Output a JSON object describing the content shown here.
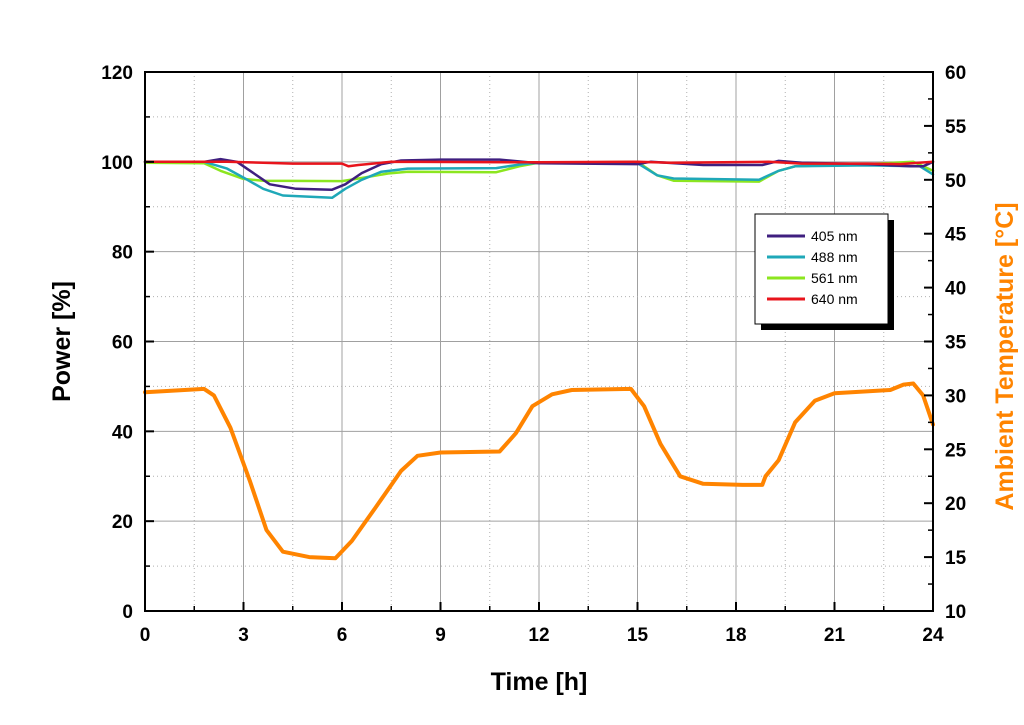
{
  "chart_data": {
    "type": "line",
    "xlabel": "Time [h]",
    "ylabel": "Power [%]",
    "y2label": "Ambient Temperature [°C]",
    "xlim": [
      0,
      24
    ],
    "ylim": [
      0,
      120
    ],
    "y2lim": [
      10,
      60
    ],
    "xticks": [
      0,
      3,
      6,
      9,
      12,
      15,
      18,
      21,
      24
    ],
    "yticks": [
      0,
      20,
      40,
      60,
      80,
      100,
      120
    ],
    "y2ticks": [
      10,
      15,
      20,
      25,
      30,
      35,
      40,
      45,
      50,
      55,
      60
    ],
    "grid": true,
    "legend_position": "right",
    "series": [
      {
        "name": "405 nm",
        "axis": "left",
        "color": "#3f1f7f",
        "points": [
          [
            0,
            100
          ],
          [
            1.8,
            100
          ],
          [
            2.3,
            100.6
          ],
          [
            2.8,
            100
          ],
          [
            3.2,
            98
          ],
          [
            3.8,
            95
          ],
          [
            4.6,
            94
          ],
          [
            5.7,
            93.8
          ],
          [
            6.1,
            95
          ],
          [
            6.6,
            97.5
          ],
          [
            7.2,
            99.5
          ],
          [
            7.8,
            100.3
          ],
          [
            9,
            100.5
          ],
          [
            10.8,
            100.5
          ],
          [
            11.5,
            100
          ],
          [
            12,
            99.7
          ],
          [
            15,
            99.5
          ],
          [
            15.4,
            100
          ],
          [
            17,
            99.3
          ],
          [
            18.8,
            99.3
          ],
          [
            19.3,
            100.2
          ],
          [
            20,
            99.8
          ],
          [
            22,
            99.5
          ],
          [
            23.3,
            99
          ],
          [
            23.7,
            99
          ],
          [
            24,
            100
          ]
        ]
      },
      {
        "name": "488 nm",
        "axis": "left",
        "color": "#1fa8b8",
        "points": [
          [
            0,
            100
          ],
          [
            1.8,
            100
          ],
          [
            2.5,
            98.5
          ],
          [
            3,
            96.5
          ],
          [
            3.6,
            94
          ],
          [
            4.2,
            92.5
          ],
          [
            5.7,
            92
          ],
          [
            6.1,
            94
          ],
          [
            6.6,
            96
          ],
          [
            7.2,
            97.8
          ],
          [
            8,
            98.5
          ],
          [
            10.7,
            98.6
          ],
          [
            11.5,
            99.5
          ],
          [
            12,
            99.8
          ],
          [
            15,
            99.7
          ],
          [
            15.6,
            97
          ],
          [
            16.1,
            96.3
          ],
          [
            18.7,
            96
          ],
          [
            19.3,
            98
          ],
          [
            19.8,
            99
          ],
          [
            22,
            99.2
          ],
          [
            23.6,
            99
          ],
          [
            24,
            97.2
          ]
        ]
      },
      {
        "name": "561 nm",
        "axis": "left",
        "color": "#8ce61f",
        "points": [
          [
            0,
            99.8
          ],
          [
            1.8,
            99.7
          ],
          [
            2.3,
            98
          ],
          [
            3,
            96.2
          ],
          [
            3.6,
            95.8
          ],
          [
            6,
            95.7
          ],
          [
            6.6,
            96.4
          ],
          [
            7.4,
            97.4
          ],
          [
            8,
            97.8
          ],
          [
            10.7,
            97.7
          ],
          [
            11.4,
            99
          ],
          [
            12,
            99.8
          ],
          [
            15,
            100
          ],
          [
            15.6,
            97
          ],
          [
            16.1,
            95.8
          ],
          [
            18.7,
            95.6
          ],
          [
            19.3,
            98
          ],
          [
            19.8,
            99
          ],
          [
            22,
            99.5
          ],
          [
            23.4,
            100
          ],
          [
            24,
            98
          ]
        ]
      },
      {
        "name": "640 nm",
        "axis": "left",
        "color": "#e8141c",
        "points": [
          [
            0,
            100
          ],
          [
            2.5,
            100
          ],
          [
            3.6,
            99.8
          ],
          [
            4.5,
            99.6
          ],
          [
            6,
            99.6
          ],
          [
            6.2,
            99
          ],
          [
            6.5,
            99.3
          ],
          [
            7.5,
            100
          ],
          [
            12,
            99.9
          ],
          [
            15,
            100
          ],
          [
            16,
            99.8
          ],
          [
            19,
            100
          ],
          [
            20,
            99.6
          ],
          [
            22,
            99.6
          ],
          [
            23,
            99.5
          ],
          [
            24,
            100
          ]
        ]
      },
      {
        "name": "Ambient Temperature",
        "axis": "right",
        "color": "#ff8400",
        "points": [
          [
            0,
            30.3
          ],
          [
            1.8,
            30.6
          ],
          [
            2.1,
            30
          ],
          [
            2.6,
            27
          ],
          [
            3.2,
            22
          ],
          [
            3.7,
            17.5
          ],
          [
            4.2,
            15.5
          ],
          [
            5,
            15
          ],
          [
            5.8,
            14.9
          ],
          [
            6.3,
            16.5
          ],
          [
            7,
            19.5
          ],
          [
            7.8,
            23
          ],
          [
            8.3,
            24.4
          ],
          [
            9,
            24.7
          ],
          [
            10.8,
            24.8
          ],
          [
            11.3,
            26.5
          ],
          [
            11.8,
            29
          ],
          [
            12.4,
            30.1
          ],
          [
            13,
            30.5
          ],
          [
            14.8,
            30.6
          ],
          [
            15.2,
            29
          ],
          [
            15.7,
            25.5
          ],
          [
            16.3,
            22.5
          ],
          [
            17,
            21.8
          ],
          [
            18.2,
            21.7
          ],
          [
            18.8,
            21.7
          ],
          [
            18.9,
            22.5
          ],
          [
            19.3,
            24
          ],
          [
            19.8,
            27.5
          ],
          [
            20.4,
            29.5
          ],
          [
            21,
            30.2
          ],
          [
            22.7,
            30.5
          ],
          [
            23.1,
            31
          ],
          [
            23.4,
            31.1
          ],
          [
            23.7,
            30
          ],
          [
            24,
            27.3
          ]
        ]
      }
    ]
  }
}
